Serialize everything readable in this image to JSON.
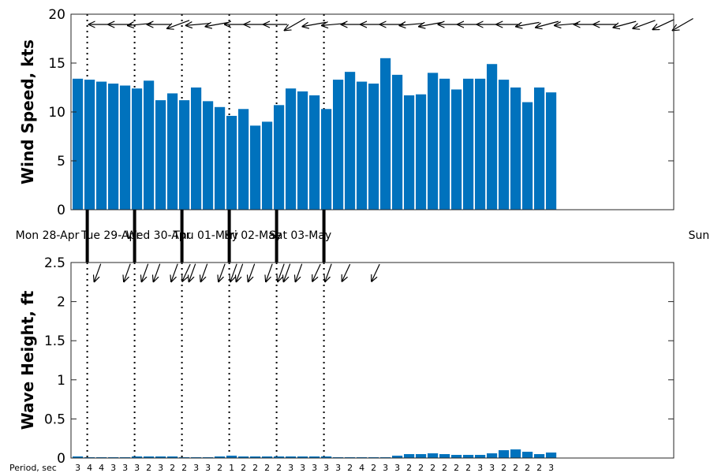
{
  "chart_data": [
    {
      "type": "bar",
      "ylabel": "Wind Speed, kts",
      "ylim": [
        0,
        20
      ],
      "yticks": [
        "0",
        "5",
        "10",
        "15",
        "20"
      ],
      "bar_color": "#0072bd",
      "values": [
        13.4,
        13.3,
        13.1,
        12.9,
        12.7,
        12.4,
        13.2,
        11.2,
        11.9,
        11.2,
        12.5,
        11.1,
        10.5,
        9.6,
        10.3,
        8.6,
        9.0,
        10.7,
        12.4,
        12.1,
        11.7,
        10.3,
        13.3,
        14.1,
        13.1,
        12.9,
        15.5,
        13.8,
        11.7,
        11.8,
        14.0,
        13.4,
        12.3,
        13.4,
        13.4,
        14.9,
        13.3,
        12.5,
        11.0,
        12.5,
        12.0
      ],
      "direction_arrows": "wind direction arrows drawn above each bar",
      "wind_arrow_angles": [
        180,
        180,
        175,
        180,
        160,
        175,
        170,
        180,
        180,
        180,
        150,
        170,
        175,
        180,
        180,
        180,
        175,
        170,
        180,
        180,
        180,
        180,
        170,
        165,
        175,
        180,
        180,
        165,
        160,
        155,
        150
      ]
    },
    {
      "type": "bar",
      "ylabel": "Wave Height, ft",
      "ylim": [
        0,
        2.5
      ],
      "yticks": [
        "0",
        "0.5",
        "1",
        "1.5",
        "2",
        "2.5"
      ],
      "bar_color": "#0072bd",
      "values": [
        0.02,
        0.01,
        0.01,
        0.01,
        0.01,
        0.02,
        0.02,
        0.02,
        0.02,
        0.01,
        0.01,
        0.01,
        0.02,
        0.03,
        0.02,
        0.02,
        0.02,
        0.02,
        0.02,
        0.02,
        0.02,
        0.02,
        0.01,
        0.01,
        0.01,
        0.01,
        0.01,
        0.03,
        0.05,
        0.05,
        0.06,
        0.05,
        0.04,
        0.04,
        0.04,
        0.06,
        0.1,
        0.11,
        0.08,
        0.05,
        0.07
      ],
      "wave_arrow_angles": [
        110,
        110,
        110,
        115,
        110,
        110,
        110,
        110,
        110,
        110,
        110,
        110,
        110,
        110,
        110,
        110,
        110,
        115,
        115,
        115
      ],
      "period_label": "Period, sec",
      "periods": [
        "3",
        "4",
        "4",
        "3",
        "3",
        "3",
        "2",
        "3",
        "2",
        "2",
        "3",
        "3",
        "2",
        "1",
        "2",
        "2",
        "2",
        "2",
        "3",
        "3",
        "3",
        "3",
        "3",
        "2",
        "4",
        "2",
        "3",
        "3",
        "2",
        "2",
        "2",
        "2",
        "2",
        "2",
        "3",
        "3",
        "2",
        "2",
        "2",
        "2",
        "3"
      ]
    }
  ],
  "days": [
    "Mon 28-Apr",
    "Tue 29-Apr",
    "Wed 30-Apr",
    "Thu 01-May",
    "Fri 02-May",
    "Sat 03-May",
    "Sun"
  ]
}
